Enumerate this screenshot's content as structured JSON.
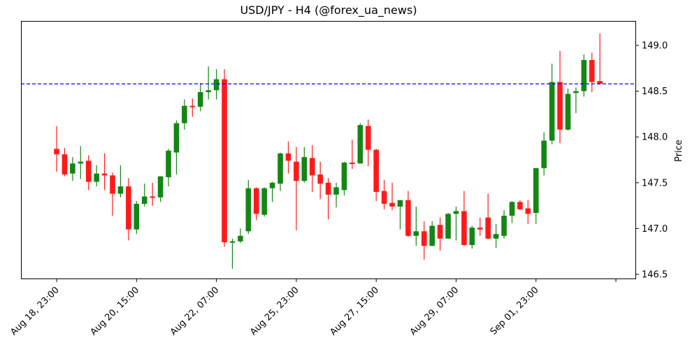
{
  "title": "USD/JPY - H4 (@forex_ua_news)",
  "colors": {
    "up": "#158515",
    "down": "#ff1a1a",
    "reference_line": "#0000ff"
  },
  "chart_data": {
    "type": "candlestick",
    "title": "USD/JPY - H4 (@forex_ua_news)",
    "xlabel": "",
    "ylabel": "Price",
    "ylim": [
      146.45,
      149.27
    ],
    "yticks": [
      146.5,
      147.0,
      147.5,
      148.0,
      148.5,
      149.0
    ],
    "ytick_labels": [
      "146.5",
      "147.0",
      "147.5",
      "148.0",
      "148.5",
      "149.0"
    ],
    "y_axis_position": "right",
    "grid": false,
    "legend": null,
    "xtick_index": [
      0,
      10,
      20,
      30,
      40,
      50,
      60,
      70
    ],
    "xtick_labels": [
      "Aug 18, 23:00",
      "Aug 20, 15:00",
      "Aug 22, 07:00",
      "Aug 25, 23:00",
      "Aug 27, 15:00",
      "Aug 29, 07:00",
      "Sep 01, 23:00",
      ""
    ],
    "reference_line": {
      "value": 148.58,
      "style": "dashed",
      "color": "#0000ff"
    },
    "candles": [
      {
        "o": 147.87,
        "h": 148.12,
        "l": 147.62,
        "c": 147.81
      },
      {
        "o": 147.81,
        "h": 147.88,
        "l": 147.57,
        "c": 147.59
      },
      {
        "o": 147.6,
        "h": 147.78,
        "l": 147.52,
        "c": 147.71
      },
      {
        "o": 147.71,
        "h": 147.9,
        "l": 147.54,
        "c": 147.73
      },
      {
        "o": 147.74,
        "h": 147.8,
        "l": 147.42,
        "c": 147.51
      },
      {
        "o": 147.51,
        "h": 147.69,
        "l": 147.46,
        "c": 147.6
      },
      {
        "o": 147.6,
        "h": 147.82,
        "l": 147.42,
        "c": 147.58
      },
      {
        "o": 147.58,
        "h": 147.61,
        "l": 147.14,
        "c": 147.38
      },
      {
        "o": 147.38,
        "h": 147.69,
        "l": 147.34,
        "c": 147.46
      },
      {
        "o": 147.46,
        "h": 147.55,
        "l": 146.87,
        "c": 146.99
      },
      {
        "o": 146.99,
        "h": 147.3,
        "l": 146.94,
        "c": 147.27
      },
      {
        "o": 147.27,
        "h": 147.49,
        "l": 147.24,
        "c": 147.35
      },
      {
        "o": 147.35,
        "h": 147.5,
        "l": 147.25,
        "c": 147.34
      },
      {
        "o": 147.34,
        "h": 147.57,
        "l": 147.29,
        "c": 147.57
      },
      {
        "o": 147.56,
        "h": 147.87,
        "l": 147.46,
        "c": 147.85
      },
      {
        "o": 147.83,
        "h": 148.18,
        "l": 147.59,
        "c": 148.15
      },
      {
        "o": 148.15,
        "h": 148.41,
        "l": 148.08,
        "c": 148.34
      },
      {
        "o": 148.34,
        "h": 148.42,
        "l": 148.22,
        "c": 148.33
      },
      {
        "o": 148.33,
        "h": 148.59,
        "l": 148.28,
        "c": 148.49
      },
      {
        "o": 148.49,
        "h": 148.77,
        "l": 148.41,
        "c": 148.51
      },
      {
        "o": 148.51,
        "h": 148.74,
        "l": 148.41,
        "c": 148.63
      },
      {
        "o": 148.63,
        "h": 148.74,
        "l": 146.8,
        "c": 146.85
      },
      {
        "o": 146.85,
        "h": 146.89,
        "l": 146.56,
        "c": 146.86
      },
      {
        "o": 146.86,
        "h": 147.0,
        "l": 146.84,
        "c": 146.92
      },
      {
        "o": 146.97,
        "h": 147.53,
        "l": 146.94,
        "c": 147.44
      },
      {
        "o": 147.44,
        "h": 147.45,
        "l": 147.09,
        "c": 147.16
      },
      {
        "o": 147.15,
        "h": 147.45,
        "l": 147.13,
        "c": 147.44
      },
      {
        "o": 147.44,
        "h": 147.51,
        "l": 147.29,
        "c": 147.5
      },
      {
        "o": 147.49,
        "h": 147.83,
        "l": 147.41,
        "c": 147.82
      },
      {
        "o": 147.82,
        "h": 147.95,
        "l": 147.6,
        "c": 147.74
      },
      {
        "o": 147.73,
        "h": 147.89,
        "l": 146.98,
        "c": 147.52
      },
      {
        "o": 147.52,
        "h": 147.89,
        "l": 147.5,
        "c": 147.78
      },
      {
        "o": 147.77,
        "h": 147.91,
        "l": 147.4,
        "c": 147.58
      },
      {
        "o": 147.59,
        "h": 147.73,
        "l": 147.32,
        "c": 147.49
      },
      {
        "o": 147.5,
        "h": 147.55,
        "l": 147.1,
        "c": 147.37
      },
      {
        "o": 147.37,
        "h": 147.5,
        "l": 147.23,
        "c": 147.45
      },
      {
        "o": 147.42,
        "h": 147.73,
        "l": 147.36,
        "c": 147.72
      },
      {
        "o": 147.72,
        "h": 147.97,
        "l": 147.65,
        "c": 147.71
      },
      {
        "o": 147.71,
        "h": 148.15,
        "l": 147.71,
        "c": 148.13
      },
      {
        "o": 148.12,
        "h": 148.19,
        "l": 147.68,
        "c": 147.86
      },
      {
        "o": 147.86,
        "h": 147.87,
        "l": 147.3,
        "c": 147.4
      },
      {
        "o": 147.41,
        "h": 147.53,
        "l": 147.21,
        "c": 147.27
      },
      {
        "o": 147.28,
        "h": 147.5,
        "l": 147.2,
        "c": 147.24
      },
      {
        "o": 147.24,
        "h": 147.31,
        "l": 146.99,
        "c": 147.31
      },
      {
        "o": 147.31,
        "h": 147.41,
        "l": 146.91,
        "c": 146.92
      },
      {
        "o": 146.92,
        "h": 147.24,
        "l": 146.81,
        "c": 146.97
      },
      {
        "o": 146.97,
        "h": 147.08,
        "l": 146.66,
        "c": 146.81
      },
      {
        "o": 146.81,
        "h": 147.08,
        "l": 146.81,
        "c": 147.03
      },
      {
        "o": 147.04,
        "h": 147.12,
        "l": 146.76,
        "c": 146.89
      },
      {
        "o": 146.89,
        "h": 147.17,
        "l": 146.89,
        "c": 147.16
      },
      {
        "o": 147.16,
        "h": 147.24,
        "l": 146.87,
        "c": 147.19
      },
      {
        "o": 147.19,
        "h": 147.41,
        "l": 146.81,
        "c": 146.82
      },
      {
        "o": 146.82,
        "h": 147.03,
        "l": 146.78,
        "c": 147.01
      },
      {
        "o": 147.01,
        "h": 147.12,
        "l": 146.92,
        "c": 146.99
      },
      {
        "o": 147.12,
        "h": 147.38,
        "l": 146.88,
        "c": 146.89
      },
      {
        "o": 146.89,
        "h": 147.05,
        "l": 146.79,
        "c": 146.94
      },
      {
        "o": 146.92,
        "h": 147.2,
        "l": 146.89,
        "c": 147.14
      },
      {
        "o": 147.14,
        "h": 147.3,
        "l": 147.06,
        "c": 147.29
      },
      {
        "o": 147.29,
        "h": 147.31,
        "l": 147.2,
        "c": 147.21
      },
      {
        "o": 147.22,
        "h": 147.31,
        "l": 147.05,
        "c": 147.16
      },
      {
        "o": 147.17,
        "h": 147.66,
        "l": 147.05,
        "c": 147.66
      },
      {
        "o": 147.66,
        "h": 148.05,
        "l": 147.58,
        "c": 147.96
      },
      {
        "o": 147.96,
        "h": 148.8,
        "l": 147.92,
        "c": 148.6
      },
      {
        "o": 148.6,
        "h": 148.94,
        "l": 147.93,
        "c": 148.08
      },
      {
        "o": 148.08,
        "h": 148.53,
        "l": 148.07,
        "c": 148.47
      },
      {
        "o": 148.48,
        "h": 148.54,
        "l": 148.26,
        "c": 148.5
      },
      {
        "o": 148.5,
        "h": 148.9,
        "l": 148.44,
        "c": 148.84
      },
      {
        "o": 148.84,
        "h": 148.92,
        "l": 148.49,
        "c": 148.6
      },
      {
        "o": 148.61,
        "h": 149.13,
        "l": 148.57,
        "c": 148.58
      }
    ]
  }
}
